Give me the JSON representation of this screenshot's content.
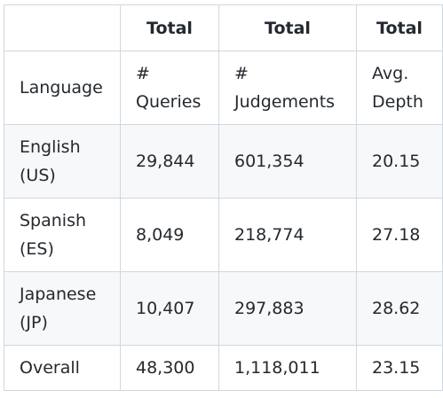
{
  "table": {
    "header": [
      "",
      "Total",
      "Total",
      "Total"
    ],
    "subheader": [
      [
        "Language"
      ],
      [
        "#",
        "Queries"
      ],
      [
        "#",
        "Judgements"
      ],
      [
        "Avg.",
        "Depth"
      ]
    ],
    "rows": [
      {
        "language": [
          "English",
          "(US)"
        ],
        "queries": "29,844",
        "judgements": "601,354",
        "depth": "20.15"
      },
      {
        "language": [
          "Spanish",
          "(ES)"
        ],
        "queries": "8,049",
        "judgements": "218,774",
        "depth": "27.18"
      },
      {
        "language": [
          "Japanese",
          "(JP)"
        ],
        "queries": "10,407",
        "judgements": "297,883",
        "depth": "28.62"
      }
    ],
    "overall": {
      "language": "Overall",
      "queries": "48,300",
      "judgements": "1,118,011",
      "depth": "23.15"
    }
  }
}
